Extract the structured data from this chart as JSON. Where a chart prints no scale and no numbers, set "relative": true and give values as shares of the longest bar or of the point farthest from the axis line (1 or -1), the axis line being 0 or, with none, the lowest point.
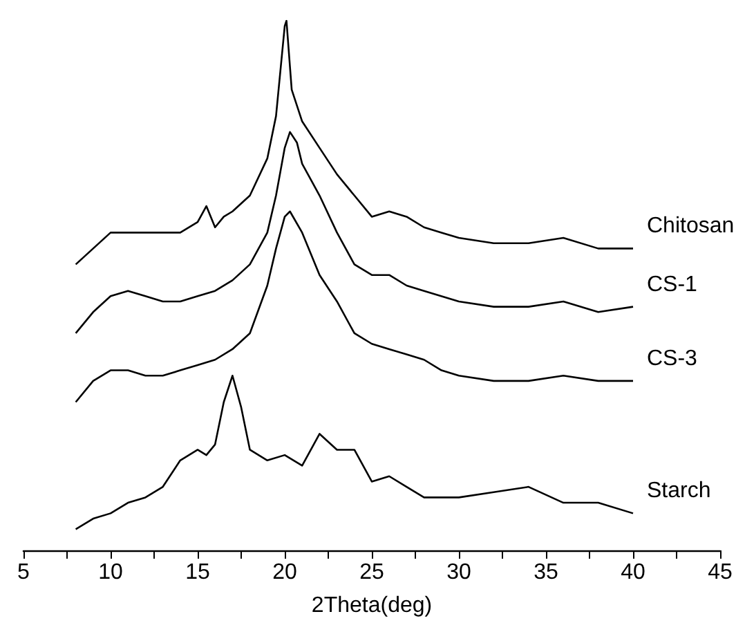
{
  "chart_data": {
    "type": "line",
    "relative": true,
    "xlabel": "2Theta(deg)",
    "xlim": [
      5,
      45
    ],
    "xticks": [
      5,
      {
        "value": 7.5,
        "label": null
      },
      10,
      {
        "value": 12.5,
        "label": null
      },
      15,
      {
        "value": 17.5,
        "label": null
      },
      20,
      {
        "value": 22.5,
        "label": null
      },
      25,
      {
        "value": 27.5,
        "label": null
      },
      30,
      {
        "value": 32.5,
        "label": null
      },
      35,
      {
        "value": 37.5,
        "label": null
      },
      40,
      {
        "value": 42.5,
        "label": null
      },
      45
    ],
    "grid": false,
    "legend": false,
    "marker": "none",
    "line_style": "solid",
    "series": [
      {
        "name": "Chitosan",
        "color": "#000000",
        "x": [
          8,
          9,
          10,
          11,
          12,
          13,
          14,
          15,
          15.5,
          16,
          16.5,
          17,
          18,
          19,
          19.5,
          20,
          20.1,
          20.4,
          21,
          22,
          23,
          24,
          25,
          26,
          27,
          28,
          29,
          30,
          32,
          34,
          36,
          38,
          40
        ],
        "values": [
          0.54,
          0.57,
          0.6,
          0.6,
          0.6,
          0.6,
          0.6,
          0.62,
          0.65,
          0.61,
          0.63,
          0.64,
          0.67,
          0.74,
          0.82,
          0.99,
          1.0,
          0.87,
          0.81,
          0.76,
          0.71,
          0.67,
          0.63,
          0.64,
          0.63,
          0.61,
          0.6,
          0.59,
          0.58,
          0.58,
          0.59,
          0.57,
          0.57
        ]
      },
      {
        "name": "CS-1",
        "color": "#000000",
        "x": [
          8,
          9,
          10,
          11,
          12,
          13,
          14,
          15,
          16,
          17,
          18,
          19,
          19.5,
          20,
          20.3,
          20.7,
          21,
          22,
          23,
          24,
          25,
          26,
          27,
          28,
          30,
          32,
          34,
          36,
          38,
          40
        ],
        "values": [
          0.41,
          0.45,
          0.48,
          0.49,
          0.48,
          0.47,
          0.47,
          0.48,
          0.49,
          0.51,
          0.54,
          0.6,
          0.67,
          0.76,
          0.79,
          0.77,
          0.73,
          0.67,
          0.6,
          0.54,
          0.52,
          0.52,
          0.5,
          0.49,
          0.47,
          0.46,
          0.46,
          0.47,
          0.45,
          0.46
        ]
      },
      {
        "name": "CS-3",
        "color": "#000000",
        "x": [
          8,
          9,
          10,
          11,
          12,
          13,
          14,
          15,
          16,
          17,
          18,
          19,
          19.5,
          20,
          20.3,
          21,
          22,
          23,
          24,
          25,
          26,
          27,
          28,
          29,
          30,
          32,
          34,
          36,
          38,
          40
        ],
        "values": [
          0.28,
          0.32,
          0.34,
          0.34,
          0.33,
          0.33,
          0.34,
          0.35,
          0.36,
          0.38,
          0.41,
          0.5,
          0.57,
          0.63,
          0.64,
          0.6,
          0.52,
          0.47,
          0.41,
          0.39,
          0.38,
          0.37,
          0.36,
          0.34,
          0.33,
          0.32,
          0.32,
          0.33,
          0.32,
          0.32
        ]
      },
      {
        "name": "Starch",
        "color": "#000000",
        "x": [
          8,
          9,
          10,
          11,
          12,
          13,
          14,
          15,
          15.5,
          16,
          16.5,
          17,
          17.5,
          18,
          19,
          20,
          21,
          22,
          23,
          24,
          25,
          26,
          27,
          28,
          30,
          32,
          34,
          36,
          38,
          40
        ],
        "values": [
          0.04,
          0.06,
          0.07,
          0.09,
          0.1,
          0.12,
          0.17,
          0.19,
          0.18,
          0.2,
          0.28,
          0.33,
          0.27,
          0.19,
          0.17,
          0.18,
          0.16,
          0.22,
          0.19,
          0.19,
          0.13,
          0.14,
          0.12,
          0.1,
          0.1,
          0.11,
          0.12,
          0.09,
          0.09,
          0.07
        ]
      }
    ]
  }
}
